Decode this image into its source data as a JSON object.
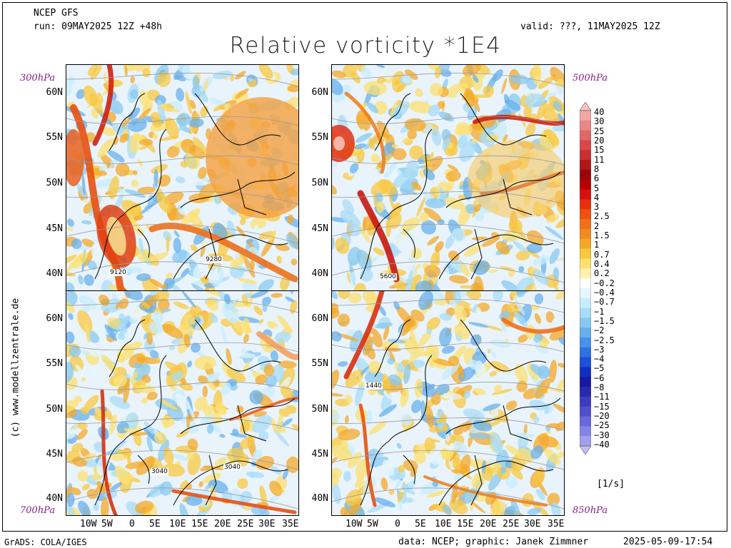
{
  "header": {
    "model": "NCEP GFS",
    "run": "run: 09MAY2025 12Z +48h",
    "valid": "valid: ???, 11MAY2025 12Z",
    "title": "Relative vorticity *1E4"
  },
  "levels": {
    "top_left": "300hPa",
    "top_right": "500hPa",
    "bottom_left": "700hPa",
    "bottom_right": "850hPa"
  },
  "axes": {
    "lat_labels_top": [
      "60N",
      "55N",
      "50N",
      "45N",
      "40N"
    ],
    "lat_labels_bottom": [
      "60N",
      "55N",
      "50N",
      "45N",
      "40N"
    ],
    "lon_labels": [
      "10W",
      "5W",
      "0",
      "5E",
      "10E",
      "15E",
      "20E",
      "25E",
      "30E",
      "35E"
    ]
  },
  "contour_labels": {
    "p300": [
      "9120",
      "9280"
    ],
    "p500": [
      "5600"
    ],
    "p700": [
      "3040",
      "3040"
    ],
    "p850": [
      "1440"
    ]
  },
  "colorbar": {
    "labels": [
      "40",
      "30",
      "25",
      "20",
      "15",
      "11",
      "8",
      "6",
      "5",
      "4",
      "3",
      "2.5",
      "2",
      "1.5",
      "1",
      "0.7",
      "0.4",
      "0.2",
      "−0.2",
      "−0.4",
      "−0.7",
      "−1",
      "−1.5",
      "−2",
      "−2.5",
      "−3",
      "−4",
      "−5",
      "−6",
      "−8",
      "−11",
      "−15",
      "−20",
      "−25",
      "−30",
      "−40"
    ],
    "colors": [
      "#f6c2c2",
      "#f0a8a8",
      "#e88888",
      "#e06868",
      "#d84848",
      "#c83030",
      "#b01818",
      "#980808",
      "#b80000",
      "#d81010",
      "#e83010",
      "#f05010",
      "#f07018",
      "#f08c20",
      "#f4a828",
      "#f8c840",
      "#fce070",
      "#fff0b0",
      "#ffffff",
      "#e6f6ff",
      "#c8ecff",
      "#a8dcf8",
      "#88c8f0",
      "#68b0ec",
      "#4890e8",
      "#3070e0",
      "#1e50d8",
      "#1030c0",
      "#1818a0",
      "#2828b0",
      "#3c3cc0",
      "#5050cc",
      "#6868d8",
      "#8484e4",
      "#a0a0ec",
      "#c0c0f4"
    ],
    "unit": "[1/s]"
  },
  "footer": {
    "left": "GrADS: COLA/IGES",
    "middle": "data: NCEP; graphic: Janek Zimmner",
    "right": "2025-05-09-17:54"
  },
  "credit": "(c) www.modellzentrale.de"
}
